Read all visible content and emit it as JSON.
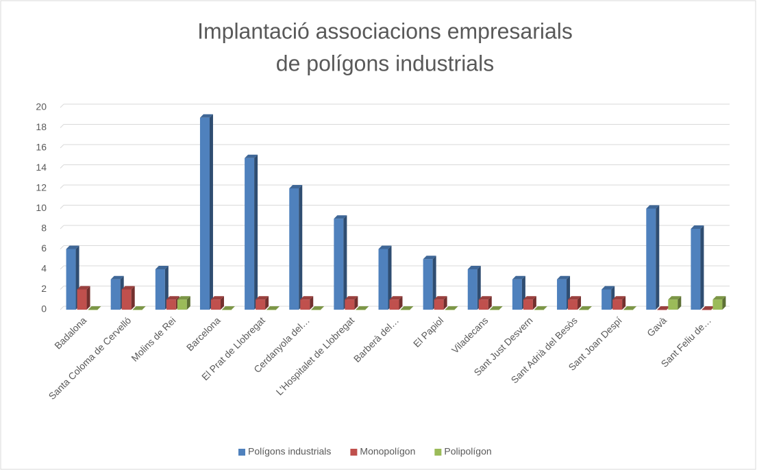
{
  "chart_data": {
    "type": "bar3d",
    "title": [
      "Implantació associacions empresarials",
      "de polígons industrials"
    ],
    "categories": [
      "Badalona",
      "Santa Coloma de Cervelló",
      "Molins de Rei",
      "Barcelona",
      "El Prat de Llobregat",
      "Cerdanyola del…",
      "L'Hospitalet de Llobregat",
      "Barberà  del…",
      "El Papiol",
      "Viladecans",
      "Sant Just Desvern",
      "Sant Adrià del Besòs",
      "Sant Joan Despí",
      "Gavà",
      "Sant Feliu de…"
    ],
    "series": [
      {
        "name": "Polígons industrials",
        "color": "#4f81bd",
        "values": [
          6,
          3,
          4,
          19,
          15,
          12,
          9,
          6,
          5,
          4,
          3,
          3,
          2,
          10,
          8
        ]
      },
      {
        "name": "Monopolígon",
        "color": "#c0504d",
        "values": [
          2,
          2,
          1,
          1,
          1,
          1,
          1,
          1,
          1,
          1,
          1,
          1,
          1,
          0,
          0
        ]
      },
      {
        "name": "Polipolígon",
        "color": "#9bbb59",
        "values": [
          0,
          0,
          1,
          0,
          0,
          0,
          0,
          0,
          0,
          0,
          0,
          0,
          0,
          1,
          1
        ]
      }
    ],
    "ylim": [
      0,
      20
    ],
    "yticks": [
      0,
      2,
      4,
      6,
      8,
      10,
      12,
      14,
      16,
      18,
      20
    ],
    "grid": true,
    "legend": "bottom"
  }
}
